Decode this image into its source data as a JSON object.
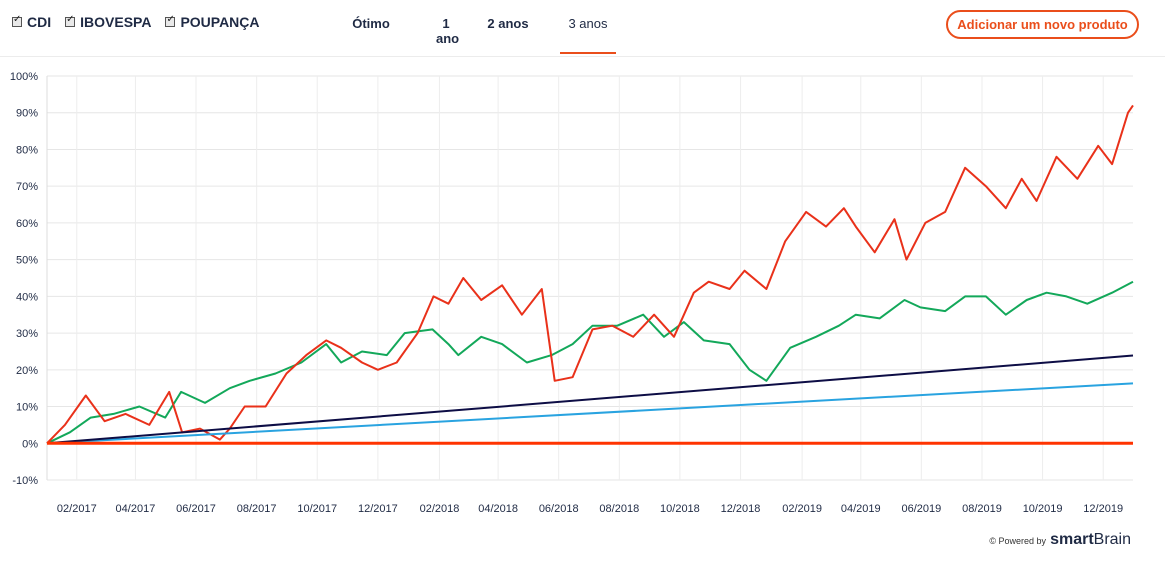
{
  "legend": [
    {
      "label": "CDI"
    },
    {
      "label": "IBOVESPA"
    },
    {
      "label": "POUPANÇA"
    }
  ],
  "tabs": [
    {
      "label": "Ótimo",
      "active": false
    },
    {
      "label": "1 ano",
      "active": false
    },
    {
      "label": "2 anos",
      "active": false
    },
    {
      "label": "3 anos",
      "active": true
    }
  ],
  "add_button": "Adicionar um novo produto",
  "footer": {
    "powered": "© Powered by",
    "brand_a": "smart",
    "brand_b": "Brain"
  },
  "colors": {
    "accent": "#ea4e1b"
  },
  "chart_data": {
    "type": "line",
    "ylim": [
      -10,
      100
    ],
    "y_ticks": [
      -10,
      0,
      10,
      20,
      30,
      40,
      50,
      60,
      70,
      80,
      90,
      100
    ],
    "x_range": [
      "2017-01-02",
      "2019-12-31"
    ],
    "x_ticks": [
      "02/2017",
      "04/2017",
      "06/2017",
      "08/2017",
      "10/2017",
      "12/2017",
      "02/2018",
      "04/2018",
      "06/2018",
      "08/2018",
      "10/2018",
      "12/2018",
      "02/2019",
      "04/2019",
      "06/2019",
      "08/2019",
      "10/2019",
      "12/2019"
    ],
    "grid": true,
    "series": [
      {
        "color": "#ff3300",
        "x": [
          "2017-01-02",
          "2019-12-31"
        ],
        "values": [
          0,
          0
        ]
      },
      {
        "color": "#29a3e0",
        "x": [
          "2017-01-02",
          "2019-12-31"
        ],
        "values": [
          0,
          16.3
        ]
      },
      {
        "color": "#0d0d45",
        "x": [
          "2017-01-02",
          "2019-12-31"
        ],
        "values": [
          0,
          23.9
        ]
      },
      {
        "color": "#13a85a",
        "x": [
          "2017-01-02",
          "2017-01-25",
          "2017-02-15",
          "2017-03-10",
          "2017-04-05",
          "2017-05-01",
          "2017-05-17",
          "2017-06-10",
          "2017-07-05",
          "2017-07-25",
          "2017-08-20",
          "2017-09-15",
          "2017-10-10",
          "2017-10-25",
          "2017-11-15",
          "2017-12-10",
          "2017-12-28",
          "2018-01-25",
          "2018-02-10",
          "2018-02-20",
          "2018-03-15",
          "2018-04-05",
          "2018-04-30",
          "2018-05-25",
          "2018-06-15",
          "2018-07-05",
          "2018-07-30",
          "2018-08-25",
          "2018-09-15",
          "2018-10-05",
          "2018-10-25",
          "2018-11-20",
          "2018-12-10",
          "2018-12-27",
          "2019-01-20",
          "2019-02-15",
          "2019-03-10",
          "2019-03-27",
          "2019-04-20",
          "2019-05-15",
          "2019-05-31",
          "2019-06-25",
          "2019-07-15",
          "2019-08-05",
          "2019-08-25",
          "2019-09-15",
          "2019-10-05",
          "2019-10-25",
          "2019-11-15",
          "2019-12-10",
          "2019-12-31"
        ],
        "values": [
          0,
          3,
          7,
          8,
          10,
          7,
          14,
          11,
          15,
          17,
          19,
          22,
          27,
          22,
          25,
          24,
          30,
          31,
          27,
          24,
          29,
          27,
          22,
          24,
          27,
          32,
          32,
          35,
          29,
          33,
          28,
          27,
          20,
          17,
          26,
          29,
          32,
          35,
          34,
          39,
          37,
          36,
          40,
          40,
          35,
          39,
          41,
          40,
          38,
          41,
          44
        ]
      },
      {
        "color": "#e9311a",
        "x": [
          "2017-01-02",
          "2017-01-20",
          "2017-02-10",
          "2017-03-01",
          "2017-03-22",
          "2017-04-15",
          "2017-05-05",
          "2017-05-18",
          "2017-06-05",
          "2017-06-25",
          "2017-07-05",
          "2017-07-20",
          "2017-08-10",
          "2017-08-31",
          "2017-09-20",
          "2017-10-10",
          "2017-10-25",
          "2017-11-15",
          "2017-12-01",
          "2017-12-20",
          "2018-01-10",
          "2018-01-26",
          "2018-02-10",
          "2018-02-25",
          "2018-03-15",
          "2018-04-05",
          "2018-04-25",
          "2018-05-15",
          "2018-05-28",
          "2018-06-15",
          "2018-07-05",
          "2018-07-25",
          "2018-08-15",
          "2018-09-05",
          "2018-09-25",
          "2018-10-15",
          "2018-10-30",
          "2018-11-20",
          "2018-12-05",
          "2018-12-27",
          "2019-01-15",
          "2019-02-05",
          "2019-02-25",
          "2019-03-15",
          "2019-03-27",
          "2019-04-15",
          "2019-05-05",
          "2019-05-17",
          "2019-06-05",
          "2019-06-25",
          "2019-07-15",
          "2019-08-05",
          "2019-08-25",
          "2019-09-10",
          "2019-09-25",
          "2019-10-15",
          "2019-11-05",
          "2019-11-26",
          "2019-12-10",
          "2019-12-26",
          "2019-12-31"
        ],
        "values": [
          0,
          5,
          13,
          6,
          8,
          5,
          14,
          3,
          4,
          1,
          4,
          10,
          10,
          19,
          24,
          28,
          26,
          22,
          20,
          22,
          30,
          40,
          38,
          45,
          39,
          43,
          35,
          42,
          17,
          18,
          31,
          32,
          29,
          35,
          29,
          41,
          44,
          42,
          47,
          42,
          55,
          63,
          59,
          64,
          59,
          52,
          61,
          50,
          60,
          63,
          75,
          70,
          64,
          72,
          66,
          78,
          72,
          81,
          76,
          90,
          92
        ]
      }
    ]
  }
}
